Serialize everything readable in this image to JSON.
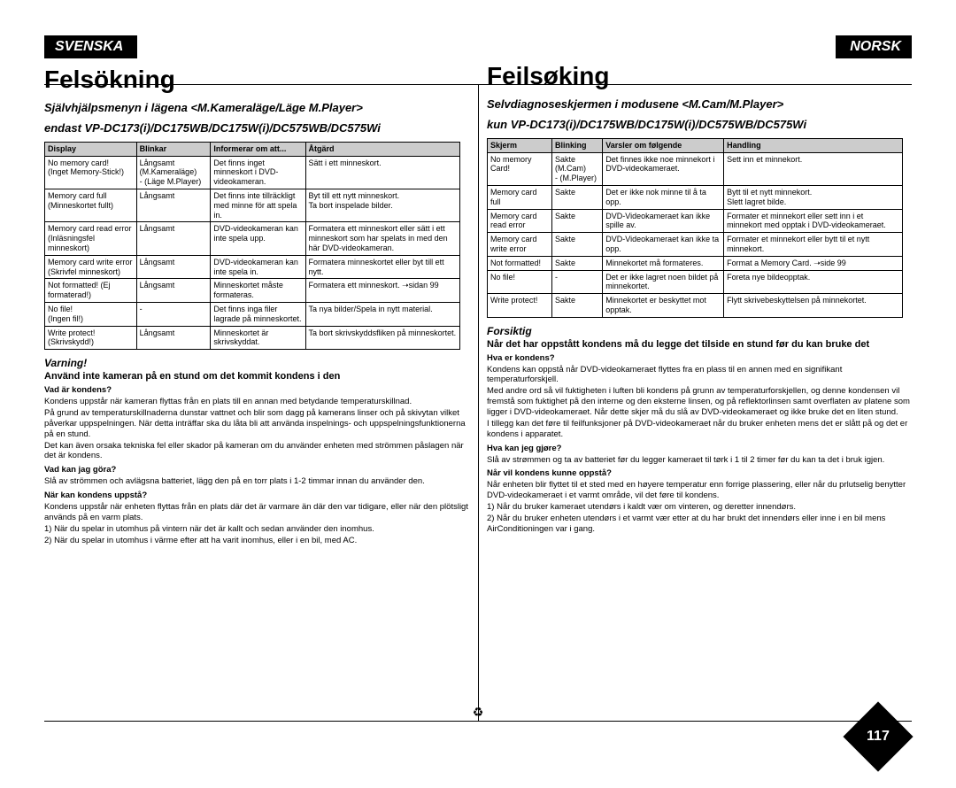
{
  "page_number": "117",
  "left": {
    "lang": "SVENSKA",
    "title": "Felsökning",
    "sub1": "Självhjälpsmenyn i lägena <M.Kameraläge/Läge M.Player>",
    "sub2": "endast VP-DC173(i)/DC175WB/DC175W(i)/DC575WB/DC575Wi",
    "headers": [
      "Display",
      "Blinkar",
      "Informerar om att...",
      "Åtgärd"
    ],
    "rows": [
      [
        "No memory card!\n(Inget Memory-Stick!)",
        "Långsamt (M.Kameraläge)\n-        (Läge M.Player)",
        "Det finns inget minneskort i DVD-videokameran.",
        "Sätt i ett minneskort."
      ],
      [
        "Memory card full\n(Minneskortet fullt)",
        "Långsamt",
        "Det finns inte tillräckligt med minne för att spela in.",
        "Byt till ett nytt minneskort.\nTa bort inspelade bilder."
      ],
      [
        "Memory card read error (Inläsningsfel minneskort)",
        "Långsamt",
        "DVD-videokameran kan inte spela upp.",
        "Formatera ett minneskort eller sätt i ett minneskort som har spelats in med den här DVD-videokameran."
      ],
      [
        "Memory card write error\n(Skrivfel minneskort)",
        "Långsamt",
        "DVD-videokameran kan inte spela in.",
        "Formatera minneskortet eller byt till ett nytt."
      ],
      [
        "Not formatted! (Ej formaterad!)",
        "Långsamt",
        "Minneskortet måste formateras.",
        "Formatera ett minneskort.  ➝sidan 99"
      ],
      [
        "No file!\n(Ingen fil!)",
        "-",
        "Det finns inga filer lagrade på minneskortet.",
        "Ta nya bilder/Spela in nytt material."
      ],
      [
        "Write protect! (Skrivskydd!)",
        "Långsamt",
        "Minneskortet är skrivskyddat.",
        "Ta bort skrivskyddsfliken på minneskortet."
      ]
    ],
    "warn_title": "Varning!",
    "warn_main": "Använd inte kameran på en stund om det kommit kondens i den",
    "body": {
      "q1": "Vad är kondens?",
      "p1": "Kondens uppstår när kameran flyttas från en plats till en annan med betydande temperaturskillnad.",
      "p2": "På grund av temperaturskillnaderna dunstar vattnet och blir som dagg på kamerans linser och på skivytan vilket påverkar uppspelningen. När detta inträffar ska du låta bli att använda inspelnings- och uppspelningsfunktionerna på en stund.",
      "p3": "Det kan även orsaka tekniska fel eller skador på kameran om du använder enheten med strömmen påslagen när det är kondens.",
      "q2": "Vad kan jag göra?",
      "p4": "Slå av strömmen och avlägsna batteriet, lägg den på en torr plats i 1-2 timmar innan du använder den.",
      "q3": "När kan kondens uppstå?",
      "p5": "Kondens uppstår när enheten flyttas från en plats där det är varmare än där den var tidigare, eller när den plötsligt används på en varm plats.",
      "p6": "1)   När du spelar in utomhus på vintern när det är kallt och sedan använder den inomhus.",
      "p7": "2)   När du spelar in utomhus i värme efter att ha varit inomhus, eller i en bil, med AC."
    }
  },
  "right": {
    "lang": "NORSK",
    "title": "Feilsøking",
    "sub1": "Selvdiagnoseskjermen i modusene <M.Cam/M.Player>",
    "sub2": "kun VP-DC173(i)/DC175WB/DC175W(i)/DC575WB/DC575Wi",
    "headers": [
      "Skjerm",
      "Blinking",
      "Varsler om følgende",
      "Handling"
    ],
    "rows": [
      [
        "No memory Card!",
        "Sakte (M.Cam)\n-      (M.Player)",
        "Det finnes ikke noe minnekort i DVD-videokameraet.",
        "Sett inn et minnekort."
      ],
      [
        "Memory card full",
        "Sakte",
        "Det er ikke nok minne til å ta opp.",
        "Bytt til et nytt minnekort.\nSlett lagret bilde."
      ],
      [
        "Memory card read error",
        "Sakte",
        "DVD-Videokameraet kan ikke spille av.",
        "Formater et minnekort eller sett inn i et minnekort med opptak i DVD-videokameraet."
      ],
      [
        "Memory card write error",
        "Sakte",
        "DVD-Videokameraet kan ikke ta opp.",
        "Formater et minnekort eller bytt til et nytt minnekort."
      ],
      [
        "Not formatted!",
        "Sakte",
        "Minnekortet må formateres.",
        "Format a Memory Card.  ➝side 99"
      ],
      [
        "No file!",
        "-",
        "Det er ikke lagret noen bildet på minnekortet.",
        "Foreta nye bildeopptak."
      ],
      [
        "Write protect!",
        "Sakte",
        "Minnekortet er beskyttet mot opptak.",
        "Flytt skrivebeskyttelsen på minnekortet."
      ]
    ],
    "warn_title": "Forsiktig",
    "warn_main": "Når det har oppstått kondens må du legge det tilside en stund før du kan bruke det",
    "body": {
      "q1": "Hva er kondens?",
      "p1": "Kondens kan oppstå når DVD-videokameraet flyttes fra en plass til en annen med en signifikant temperaturforskjell.",
      "p2": "Med andre ord så vil fuktigheten i luften bli kondens på grunn av temperaturforskjellen, og denne kondensen vil fremstå som fuktighet på den interne og den eksterne linsen, og på reflektorlinsen samt overflaten av platene som ligger i DVD-videokameraet. Når dette skjer må du slå av DVD-videokameraet og ikke bruke det en liten stund.",
      "p3": "I tillegg kan det føre til feilfunksjoner på DVD-videokameraet når du bruker enheten mens det er slått på og det er kondens i apparatet.",
      "q2": "Hva kan jeg gjøre?",
      "p4": "Slå av strømmen og ta av batteriet før du legger kameraet til tørk i 1 til 2 timer før du kan ta det i bruk igjen.",
      "q3": "Når vil kondens kunne oppstå?",
      "p5": "Når enheten blir flyttet til et sted med en høyere temperatur enn forrige plassering, eller når du prlutselig benytter DVD-videokameraet i et varmt område, vil det føre til kondens.",
      "p6": "1)   Når du bruker kameraet utendørs i kaldt vær om vinteren, og deretter innendørs.",
      "p7": "2)   Når du bruker enheten utendørs i et varmt vær etter at du har brukt det innendørs eller inne i en bil mens AirConditioningen var i gang."
    }
  }
}
